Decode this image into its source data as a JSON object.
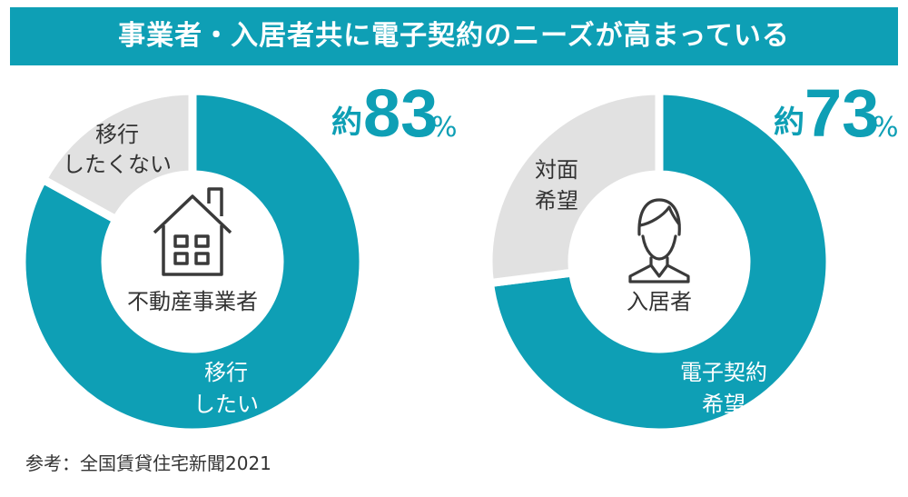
{
  "banner": {
    "title": "事業者・入居者共に電子契約のニーズが高まっている"
  },
  "colors": {
    "accent": "#0e9fb5",
    "rest": "#e1e1e1",
    "icon": "#3a3a3a"
  },
  "chart_data": [
    {
      "type": "pie",
      "variant": "donut",
      "center_label": "不動産事業者",
      "center_icon": "house-icon",
      "headline": {
        "prefix": "約",
        "value": "83",
        "unit": "%"
      },
      "slices": [
        {
          "label_lines": [
            "移行",
            "したい"
          ],
          "value": 83,
          "color": "#0e9fb5"
        },
        {
          "label_lines": [
            "移行",
            "したくない"
          ],
          "value": 17,
          "color": "#e1e1e1"
        }
      ]
    },
    {
      "type": "pie",
      "variant": "donut",
      "center_label": "入居者",
      "center_icon": "person-icon",
      "headline": {
        "prefix": "約",
        "value": "73",
        "unit": "%"
      },
      "slices": [
        {
          "label_lines": [
            "電子契約",
            "希望"
          ],
          "value": 73,
          "color": "#0e9fb5"
        },
        {
          "label_lines": [
            "対面",
            "希望"
          ],
          "value": 27,
          "color": "#e1e1e1"
        }
      ]
    }
  ],
  "source": "参考：全国賃貸住宅新聞2021"
}
